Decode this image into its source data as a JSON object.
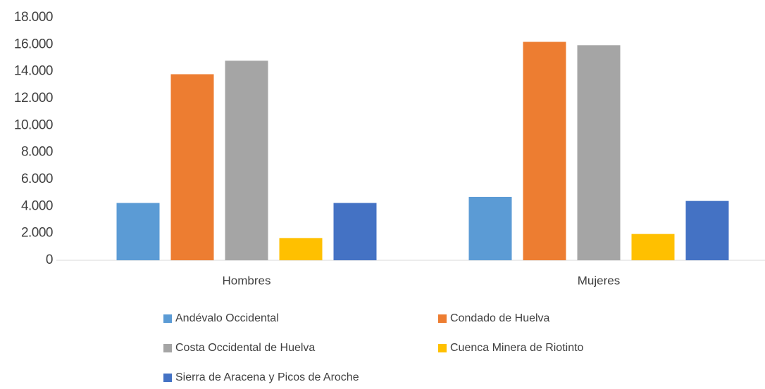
{
  "chart_data": {
    "type": "bar",
    "categories": [
      "Hombres",
      "Mujeres"
    ],
    "series": [
      {
        "name": "Andévalo Occidental",
        "color": "#5b9bd5",
        "values": [
          4250,
          4700
        ]
      },
      {
        "name": "Condado de Huelva",
        "color": "#ed7d31",
        "values": [
          13800,
          16200
        ]
      },
      {
        "name": "Costa Occidental de Huelva",
        "color": "#a5a5a5",
        "values": [
          14800,
          15950
        ]
      },
      {
        "name": "Cuenca Minera de Riotinto",
        "color": "#ffc000",
        "values": [
          1650,
          1950
        ]
      },
      {
        "name": "Sierra de Aracena y Picos de Aroche",
        "color": "#4472c4",
        "values": [
          4250,
          4400
        ]
      }
    ],
    "ylim": [
      0,
      18000
    ],
    "yticks": [
      0,
      {
        "value": 2000,
        "label": "2.000"
      },
      {
        "value": 4000,
        "label": "4.000"
      },
      {
        "value": 6000,
        "label": "6.000"
      },
      {
        "value": 8000,
        "label": "8.000"
      },
      {
        "value": 10000,
        "label": "10.000"
      },
      {
        "value": 12000,
        "label": "12.000"
      },
      {
        "value": 14000,
        "label": "14.000"
      },
      {
        "value": 16000,
        "label": "16.000"
      },
      {
        "value": 18000,
        "label": "18.000"
      }
    ],
    "grid": false,
    "legend": "bottom"
  }
}
